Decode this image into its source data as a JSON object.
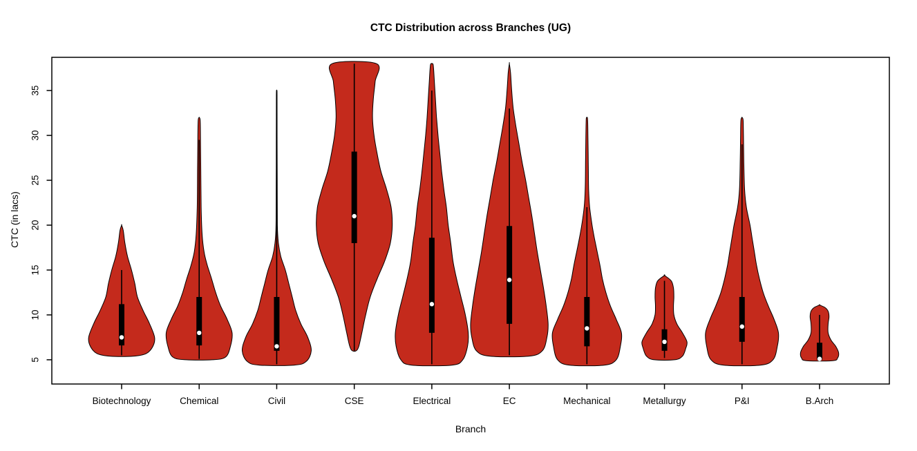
{
  "figure": {
    "background": "#FFFFFF"
  },
  "chart_data": {
    "type": "violin",
    "title": "CTC Distribution across Branches (UG)",
    "xlabel": "Branch",
    "ylabel": "CTC (in lacs)",
    "ylim": [
      2.3,
      38.7
    ],
    "yticks": [
      5,
      10,
      15,
      20,
      25,
      30,
      35
    ],
    "grid": false,
    "legend": false,
    "violin_color": "#C42A1C",
    "outline_color": "#000000",
    "box_color": "#000000",
    "median_color": "#FFFFFF",
    "categories": [
      "Biotechnology",
      "Chemical",
      "Civil",
      "CSE",
      "Electrical",
      "EC",
      "Mechanical",
      "Metallurgy",
      "P&I",
      "B.Arch"
    ],
    "series": [
      {
        "branch": "Biotechnology",
        "min": 5.4,
        "max": 20,
        "q1": 6.6,
        "q3": 11.2,
        "median": 7.5,
        "whisker_low": 5.5,
        "whisker_high": 15,
        "width": 0.85,
        "profile": [
          [
            5.4,
            0.35
          ],
          [
            5.7,
            0.75
          ],
          [
            6.5,
            0.95
          ],
          [
            7.5,
            1.0
          ],
          [
            9,
            0.85
          ],
          [
            10.5,
            0.65
          ],
          [
            12,
            0.48
          ],
          [
            13.5,
            0.4
          ],
          [
            15,
            0.3
          ],
          [
            16.5,
            0.18
          ],
          [
            18,
            0.1
          ],
          [
            19.4,
            0.05
          ],
          [
            20,
            0
          ]
        ]
      },
      {
        "branch": "Chemical",
        "min": 5.0,
        "max": 32,
        "q1": 6.6,
        "q3": 12,
        "median": 8,
        "whisker_low": 5.1,
        "whisker_high": 29.5,
        "width": 0.85,
        "profile": [
          [
            5.0,
            0.4
          ],
          [
            5.3,
            0.8
          ],
          [
            6.5,
            0.95
          ],
          [
            8,
            1.0
          ],
          [
            9.5,
            0.85
          ],
          [
            11,
            0.65
          ],
          [
            12.5,
            0.5
          ],
          [
            14,
            0.38
          ],
          [
            15.5,
            0.25
          ],
          [
            17,
            0.15
          ],
          [
            19,
            0.09
          ],
          [
            22,
            0.06
          ],
          [
            26,
            0.05
          ],
          [
            30,
            0.04
          ],
          [
            31.7,
            0.03
          ],
          [
            32,
            0
          ]
        ]
      },
      {
        "branch": "Civil",
        "min": 4.4,
        "max": 35,
        "q1": 6.0,
        "q3": 12,
        "median": 6.5,
        "whisker_low": 4.5,
        "whisker_high": 35,
        "width": 0.89,
        "profile": [
          [
            4.4,
            0.5
          ],
          [
            4.8,
            0.85
          ],
          [
            6,
            1.0
          ],
          [
            7.5,
            0.9
          ],
          [
            9,
            0.7
          ],
          [
            10.5,
            0.55
          ],
          [
            12,
            0.45
          ],
          [
            13.5,
            0.35
          ],
          [
            15,
            0.25
          ],
          [
            16.5,
            0.12
          ],
          [
            18,
            0.05
          ],
          [
            20,
            0.02
          ],
          [
            25,
            0.015
          ],
          [
            30,
            0.012
          ],
          [
            34.5,
            0.01
          ],
          [
            35,
            0
          ]
        ]
      },
      {
        "branch": "CSE",
        "min": 6.0,
        "max": 38,
        "q1": 18,
        "q3": 28.2,
        "median": 21,
        "whisker_low": 6.0,
        "whisker_high": 38,
        "width": 0.98,
        "profile": [
          [
            6,
            0.05
          ],
          [
            6.5,
            0.12
          ],
          [
            8,
            0.2
          ],
          [
            10,
            0.3
          ],
          [
            12,
            0.42
          ],
          [
            14,
            0.6
          ],
          [
            16,
            0.8
          ],
          [
            18,
            0.95
          ],
          [
            20,
            1.0
          ],
          [
            22,
            0.97
          ],
          [
            24,
            0.85
          ],
          [
            26,
            0.7
          ],
          [
            28,
            0.6
          ],
          [
            30,
            0.52
          ],
          [
            32,
            0.48
          ],
          [
            34,
            0.5
          ],
          [
            36,
            0.55
          ],
          [
            38,
            0.58
          ]
        ]
      },
      {
        "branch": "Electrical",
        "min": 4.4,
        "max": 38,
        "q1": 8,
        "q3": 18.6,
        "median": 11.2,
        "whisker_low": 4.5,
        "whisker_high": 35,
        "width": 0.94,
        "profile": [
          [
            4.4,
            0.55
          ],
          [
            5,
            0.85
          ],
          [
            6.5,
            0.98
          ],
          [
            8,
            1.0
          ],
          [
            10,
            0.92
          ],
          [
            12,
            0.8
          ],
          [
            14,
            0.68
          ],
          [
            16,
            0.58
          ],
          [
            18,
            0.52
          ],
          [
            20,
            0.45
          ],
          [
            22,
            0.4
          ],
          [
            24,
            0.33
          ],
          [
            26,
            0.27
          ],
          [
            28,
            0.22
          ],
          [
            30,
            0.17
          ],
          [
            32,
            0.13
          ],
          [
            34,
            0.1
          ],
          [
            36,
            0.07
          ],
          [
            37.8,
            0.04
          ],
          [
            38,
            0
          ]
        ]
      },
      {
        "branch": "EC",
        "min": 5.4,
        "max": 38,
        "q1": 9,
        "q3": 19.9,
        "median": 13.9,
        "whisker_low": 5.5,
        "whisker_high": 33,
        "width": 1.0,
        "profile": [
          [
            5.4,
            0.5
          ],
          [
            6,
            0.85
          ],
          [
            7.5,
            0.97
          ],
          [
            9,
            1.0
          ],
          [
            11,
            0.95
          ],
          [
            13,
            0.88
          ],
          [
            15,
            0.8
          ],
          [
            17,
            0.72
          ],
          [
            19,
            0.65
          ],
          [
            21,
            0.58
          ],
          [
            23,
            0.5
          ],
          [
            25,
            0.42
          ],
          [
            27,
            0.33
          ],
          [
            29,
            0.25
          ],
          [
            31,
            0.17
          ],
          [
            33,
            0.1
          ],
          [
            35,
            0.06
          ],
          [
            37,
            0.03
          ],
          [
            38,
            0
          ]
        ]
      },
      {
        "branch": "Mechanical",
        "min": 4.4,
        "max": 32,
        "q1": 6.5,
        "q3": 12,
        "median": 8.5,
        "whisker_low": 4.5,
        "whisker_high": 22,
        "width": 0.89,
        "profile": [
          [
            4.4,
            0.5
          ],
          [
            5,
            0.85
          ],
          [
            6.5,
            0.97
          ],
          [
            8,
            1.0
          ],
          [
            9.5,
            0.85
          ],
          [
            11,
            0.68
          ],
          [
            12.5,
            0.55
          ],
          [
            14,
            0.45
          ],
          [
            15.5,
            0.38
          ],
          [
            17,
            0.3
          ],
          [
            18.5,
            0.22
          ],
          [
            20,
            0.15
          ],
          [
            22,
            0.08
          ],
          [
            24,
            0.05
          ],
          [
            27,
            0.04
          ],
          [
            30,
            0.03
          ],
          [
            31.8,
            0.02
          ],
          [
            32,
            0
          ]
        ]
      },
      {
        "branch": "Metallurgy",
        "min": 5.0,
        "max": 14.4,
        "q1": 6.0,
        "q3": 8.4,
        "median": 7,
        "whisker_low": 5.2,
        "whisker_high": 13.8,
        "width": 0.58,
        "profile": [
          [
            5.0,
            0.45
          ],
          [
            5.4,
            0.8
          ],
          [
            6.3,
            0.95
          ],
          [
            7,
            1.0
          ],
          [
            8,
            0.8
          ],
          [
            9,
            0.55
          ],
          [
            10,
            0.42
          ],
          [
            11,
            0.4
          ],
          [
            12,
            0.42
          ],
          [
            13,
            0.4
          ],
          [
            13.8,
            0.3
          ],
          [
            14.4,
            0
          ]
        ]
      },
      {
        "branch": "P&I",
        "min": 4.4,
        "max": 32,
        "q1": 7,
        "q3": 12,
        "median": 8.7,
        "whisker_low": 4.5,
        "whisker_high": 29,
        "width": 0.94,
        "profile": [
          [
            4.4,
            0.5
          ],
          [
            5,
            0.85
          ],
          [
            6.5,
            0.97
          ],
          [
            8,
            1.0
          ],
          [
            9.5,
            0.88
          ],
          [
            11,
            0.72
          ],
          [
            12.5,
            0.58
          ],
          [
            14,
            0.48
          ],
          [
            15.5,
            0.4
          ],
          [
            17,
            0.34
          ],
          [
            18.5,
            0.28
          ],
          [
            20,
            0.22
          ],
          [
            22,
            0.12
          ],
          [
            24,
            0.07
          ],
          [
            27,
            0.05
          ],
          [
            30,
            0.04
          ],
          [
            31.7,
            0.03
          ],
          [
            32,
            0
          ]
        ]
      },
      {
        "branch": "B.Arch",
        "min": 4.9,
        "max": 11.1,
        "q1": 5.0,
        "q3": 6.9,
        "median": 5.1,
        "whisker_low": 4.9,
        "whisker_high": 10,
        "width": 0.49,
        "profile": [
          [
            4.9,
            0.7
          ],
          [
            5.2,
            0.95
          ],
          [
            5.8,
            1.0
          ],
          [
            6.5,
            0.85
          ],
          [
            7.2,
            0.6
          ],
          [
            8,
            0.45
          ],
          [
            9,
            0.45
          ],
          [
            9.8,
            0.5
          ],
          [
            10.4,
            0.45
          ],
          [
            10.8,
            0.3
          ],
          [
            11.1,
            0
          ]
        ]
      }
    ]
  }
}
